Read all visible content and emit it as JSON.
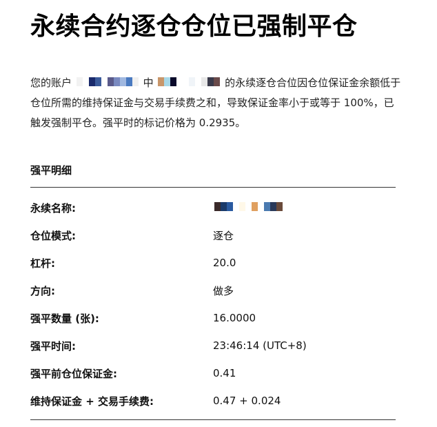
{
  "title": "永续合约逐仓仓位已强制平仓",
  "intro": {
    "part1": "您的账户",
    "part2": "中",
    "part3": "的永续逐仓合位因仓位保证金余额低于仓位所需的维持保证金与交易手续费之和，导致保证金率小于或等于 100%，已触发强制平仓。强平时的标记价格为 0.2935。"
  },
  "redaction_colors": {
    "account": [
      "#f2f2f2",
      "#ffffff",
      "#1a2a6b",
      "#3a5a9a",
      "#ffffff",
      "#5a5a8a",
      "#7a8ac0",
      "#a0b8e0",
      "#4a7ac0",
      "#f0f0f0"
    ],
    "contract": [
      "#c8966a",
      "#a8d8e8",
      "#0a0a2a",
      "#ffffff",
      "#ffffff",
      "#f0f4f8",
      "#ffffff",
      "#e8e8e8",
      "#3a3a4a",
      "#6a4a4a"
    ],
    "perpetual_name": [
      "#3a2a2a",
      "#1a3a6a",
      "#2a5aa0",
      "#ffffff",
      "#fff8e8",
      "#ffffff",
      "#e0a060",
      "#ffffff",
      "#4a7ab0",
      "#2a3a5a",
      "#6a4a3a"
    ]
  },
  "section_title": "强平明细",
  "details": [
    {
      "label": "永续名称:",
      "value": ""
    },
    {
      "label": "仓位模式:",
      "value": "逐仓"
    },
    {
      "label": "杠杆:",
      "value": "20.0"
    },
    {
      "label": "方向:",
      "value": "做多"
    },
    {
      "label": "强平数量 (张):",
      "value": "16.0000"
    },
    {
      "label": "强平时间:",
      "value": "23:46:14 (UTC+8)"
    },
    {
      "label": "强平前仓位保证金:",
      "value": "0.41"
    },
    {
      "label": "维持保证金 + 交易手续费:",
      "value": "0.47 + 0.024"
    }
  ]
}
